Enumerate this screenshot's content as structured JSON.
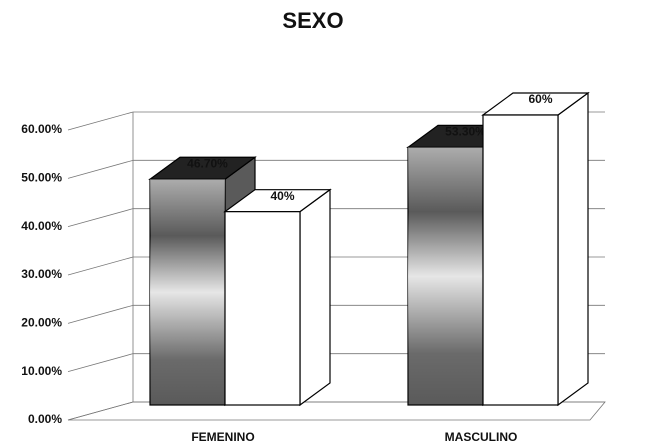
{
  "chart_data": {
    "type": "bar3d",
    "title": "SEXO",
    "categories": [
      "FEMENINO",
      "MASCULINO"
    ],
    "series": [
      {
        "color": "#5a5a5a",
        "values": [
          46.7,
          53.3
        ],
        "value_labels": [
          "46.70%",
          "53.30%"
        ]
      },
      {
        "color": "#ffffff",
        "values": [
          40,
          60
        ],
        "value_labels": [
          "40%",
          "60%"
        ]
      }
    ],
    "ylim": [
      0,
      60
    ],
    "yticks": [
      {
        "value": 0,
        "label": "0.00%"
      },
      {
        "value": 10,
        "label": "10.00%"
      },
      {
        "value": 20,
        "label": "20.00%"
      },
      {
        "value": 30,
        "label": "30.00%"
      },
      {
        "value": 40,
        "label": "40.00%"
      },
      {
        "value": 50,
        "label": "50.00%"
      },
      {
        "value": 60,
        "label": "60.00%"
      }
    ],
    "grid": true
  }
}
